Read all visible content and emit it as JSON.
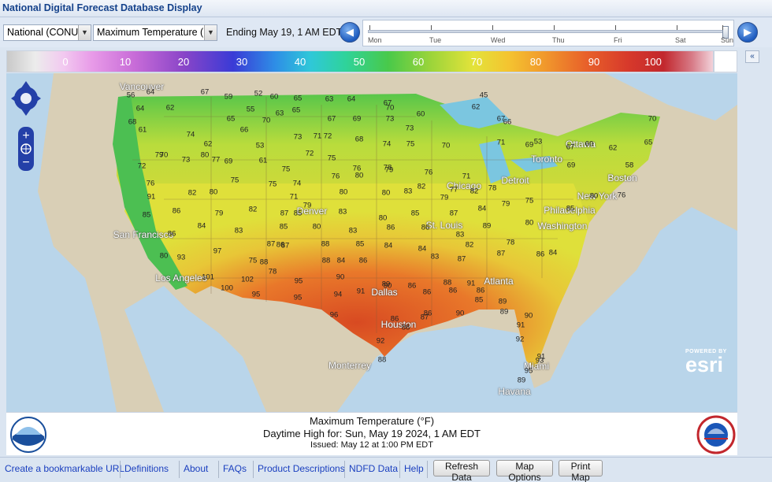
{
  "title": "National Digital Forecast Database Display",
  "toolbar": {
    "region_select": "National (CONUS",
    "element_select": "Maximum Temperature (°F",
    "ending_text": "Ending May 19,   1 AM EDT",
    "timeline_days": [
      "Mon",
      "Tue",
      "Wed",
      "Thu",
      "Fri",
      "Sat",
      "Sun"
    ],
    "timeline_position": 1.0
  },
  "legend": {
    "labels": [
      "0",
      "10",
      "20",
      "30",
      "40",
      "50",
      "60",
      "70",
      "80",
      "90",
      "100"
    ]
  },
  "map": {
    "attribution": "POWERED BY",
    "attribution_logo": "esri",
    "cities": [
      {
        "name": "Vancouver"
      },
      {
        "name": "Ottawa"
      },
      {
        "name": "Toronto"
      },
      {
        "name": "Detroit"
      },
      {
        "name": "Chicago"
      },
      {
        "name": "Boston"
      },
      {
        "name": "New York"
      },
      {
        "name": "Philadelphia"
      },
      {
        "name": "Washington"
      },
      {
        "name": "Denver"
      },
      {
        "name": "San Francisco"
      },
      {
        "name": "Los Angeles"
      },
      {
        "name": "St. Louis"
      },
      {
        "name": "Atlanta"
      },
      {
        "name": "Dallas"
      },
      {
        "name": "Houston"
      },
      {
        "name": "Monterrey"
      },
      {
        "name": "Miami"
      },
      {
        "name": "Havana"
      }
    ],
    "temps": [
      "56",
      "64",
      "67",
      "59",
      "52",
      "60",
      "65",
      "63",
      "64",
      "67",
      "45",
      "64",
      "62",
      "55",
      "63",
      "65",
      "67",
      "69",
      "70",
      "60",
      "62",
      "66",
      "68",
      "61",
      "65",
      "66",
      "70",
      "73",
      "71",
      "73",
      "73",
      "67",
      "53",
      "70",
      "60",
      "65",
      "74",
      "62",
      "53",
      "72",
      "72",
      "68",
      "74",
      "75",
      "70",
      "71",
      "69",
      "67",
      "62",
      "70",
      "73",
      "77",
      "69",
      "61",
      "75",
      "75",
      "76",
      "78",
      "76",
      "71",
      "69",
      "58",
      "72",
      "79",
      "80",
      "75",
      "75",
      "74",
      "76",
      "80",
      "79",
      "82",
      "77",
      "76",
      "82",
      "80",
      "71",
      "79",
      "80",
      "80",
      "83",
      "79",
      "82",
      "78",
      "75",
      "80",
      "76",
      "86",
      "79",
      "82",
      "87",
      "85",
      "83",
      "80",
      "85",
      "87",
      "84",
      "79",
      "85",
      "91",
      "84",
      "83",
      "85",
      "80",
      "83",
      "86",
      "86",
      "83",
      "89",
      "80",
      "85",
      "86",
      "80",
      "87",
      "87",
      "88",
      "85",
      "84",
      "84",
      "82",
      "78",
      "93",
      "97",
      "75",
      "88",
      "86",
      "88",
      "84",
      "86",
      "83",
      "87",
      "87",
      "86",
      "84",
      "101",
      "102",
      "78",
      "95",
      "90",
      "90",
      "86",
      "88",
      "91",
      "86",
      "100",
      "95",
      "94",
      "91",
      "89",
      "86",
      "86",
      "85",
      "89",
      "95",
      "96",
      "86",
      "88",
      "87",
      "90",
      "89",
      "90",
      "91",
      "92",
      "88",
      "86",
      "92",
      "93",
      "95",
      "91",
      "89"
    ]
  },
  "info": {
    "line1": "Maximum Temperature (°F)",
    "line2": "Daytime High for: Sun, May 19 2024,    1 AM EDT",
    "line3": "Issued: May 12 at 1:00 PM EDT"
  },
  "footer": {
    "links": [
      "Create a bookmarkable URL",
      "Definitions",
      "About",
      "FAQs",
      "Product Descriptions",
      "NDFD Data",
      "Help"
    ],
    "buttons": [
      "Refresh Data",
      "Map Options",
      "Print Map"
    ]
  }
}
